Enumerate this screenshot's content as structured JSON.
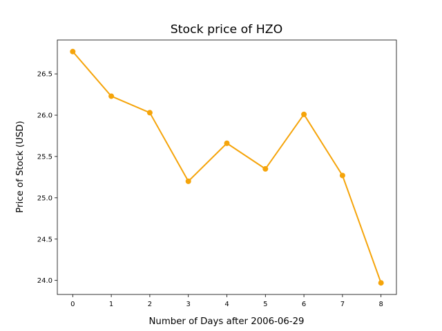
{
  "chart_data": {
    "type": "line",
    "title": "Stock price of HZO",
    "xlabel": "Number of Days after 2006-06-29",
    "ylabel": "Price of Stock (USD)",
    "x": [
      0,
      1,
      2,
      3,
      4,
      5,
      6,
      7,
      8
    ],
    "series": [
      {
        "values": [
          26.77,
          26.23,
          26.03,
          25.2,
          25.66,
          25.35,
          26.01,
          25.27,
          23.97
        ],
        "color": "#f5a40a"
      }
    ],
    "xlim": [
      -0.4,
      8.4
    ],
    "ylim": [
      23.83,
      26.91
    ],
    "xticks": [
      0,
      1,
      2,
      3,
      4,
      5,
      6,
      7,
      8
    ],
    "xtick_labels": [
      "0",
      "1",
      "2",
      "3",
      "4",
      "5",
      "6",
      "7",
      "8"
    ],
    "yticks": [
      24.0,
      24.5,
      25.0,
      25.5,
      26.0,
      26.5
    ],
    "ytick_labels": [
      "24.0",
      "24.5",
      "25.0",
      "25.5",
      "26.0",
      "26.5"
    ],
    "grid": false,
    "legend": "none",
    "marker": "circle"
  }
}
